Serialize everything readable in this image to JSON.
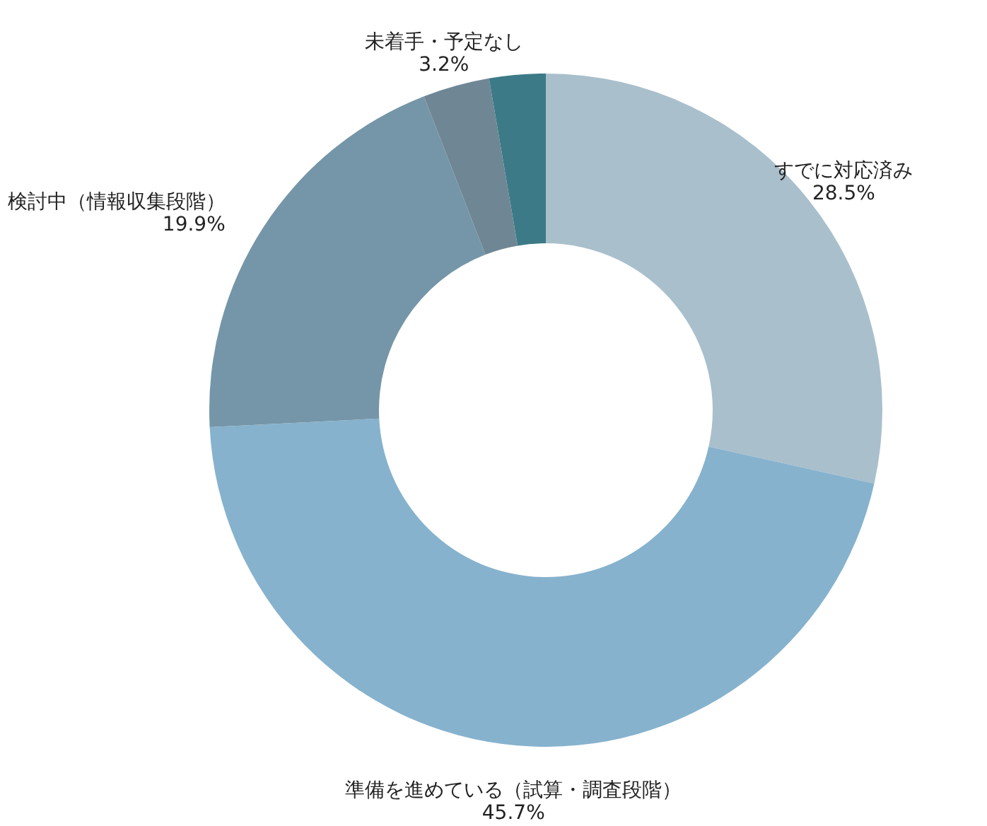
{
  "chart_data": {
    "type": "donut",
    "categories": [
      "すでに対応済み",
      "準備を進めている（試算・調査段階）",
      "検討中（情報収集段階）",
      "未着手・予定なし",
      null
    ],
    "values": [
      28.5,
      45.7,
      19.9,
      3.2,
      2.7
    ],
    "value_labels": [
      "28.5%",
      "45.7%",
      "19.9%",
      "3.2%",
      null
    ],
    "colors": [
      "#a9bfcc",
      "#86b2cd",
      "#7596a8",
      "#6f8795",
      "#3d7a87"
    ]
  }
}
